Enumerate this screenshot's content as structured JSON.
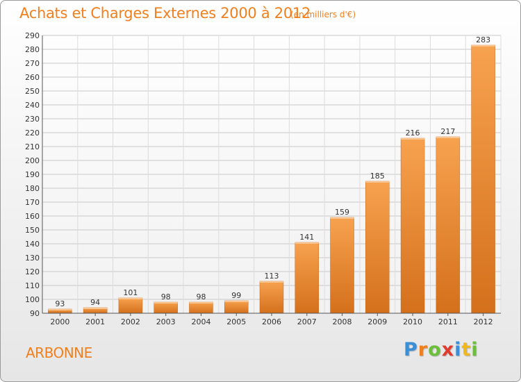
{
  "chart_data": {
    "type": "bar",
    "title": "Achats et Charges Externes 2000 à 2012",
    "unit_label": "(en milliers d'€)",
    "categories": [
      "2000",
      "2001",
      "2002",
      "2003",
      "2004",
      "2005",
      "2006",
      "2007",
      "2008",
      "2009",
      "2010",
      "2011",
      "2012"
    ],
    "values": [
      93,
      94,
      101,
      98,
      98,
      99,
      113,
      141,
      159,
      185,
      216,
      217,
      283
    ],
    "ylim": [
      90,
      290
    ],
    "yticks": [
      90,
      100,
      110,
      120,
      130,
      140,
      150,
      160,
      170,
      180,
      190,
      200,
      210,
      220,
      230,
      240,
      250,
      260,
      270,
      280,
      290
    ],
    "grid": true,
    "colors": {
      "bar_top": "#f7a24f",
      "bar_bottom": "#d4701c",
      "title": "#f07f1d"
    }
  },
  "commune": "ARBONNE",
  "logo": {
    "letters": [
      "P",
      "r",
      "o",
      "x",
      "i",
      "t",
      "i"
    ],
    "colors": [
      "#3a8fd6",
      "#f07f1d",
      "#6cbf3a",
      "#e23b2e",
      "#3a8fd6",
      "#f0b81d",
      "#6cbf3a"
    ]
  }
}
